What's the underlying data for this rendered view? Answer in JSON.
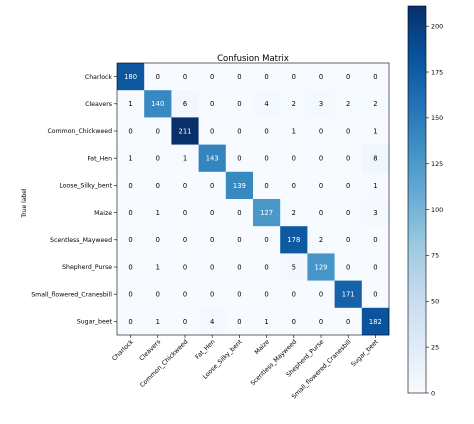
{
  "chart_data": {
    "type": "heatmap",
    "title": "Confusion Matrix",
    "ylabel": "True label",
    "xlabel": "",
    "labels": [
      "Charlock",
      "Cleavers",
      "Common_Chickweed",
      "Fat_Hen",
      "Loose_Silky_bent",
      "Maize",
      "Scentless_Mayweed",
      "Shepherd_Purse",
      "Small_flowered_Cranesbill",
      "Sugar_beet"
    ],
    "matrix": [
      [
        180,
        0,
        0,
        0,
        0,
        0,
        0,
        0,
        0,
        0
      ],
      [
        1,
        140,
        6,
        0,
        0,
        4,
        2,
        3,
        2,
        2
      ],
      [
        0,
        0,
        211,
        0,
        0,
        0,
        1,
        0,
        0,
        1
      ],
      [
        1,
        0,
        1,
        143,
        0,
        0,
        0,
        0,
        0,
        8
      ],
      [
        0,
        0,
        0,
        0,
        139,
        0,
        0,
        0,
        0,
        1
      ],
      [
        0,
        1,
        0,
        0,
        0,
        127,
        2,
        0,
        0,
        3
      ],
      [
        0,
        0,
        0,
        0,
        0,
        0,
        178,
        2,
        0,
        0
      ],
      [
        0,
        1,
        0,
        0,
        0,
        0,
        5,
        129,
        0,
        0
      ],
      [
        0,
        0,
        0,
        0,
        0,
        0,
        0,
        0,
        171,
        0
      ],
      [
        0,
        1,
        0,
        4,
        0,
        1,
        0,
        0,
        0,
        182
      ]
    ],
    "colorbar": {
      "ticks": [
        0,
        25,
        50,
        75,
        100,
        125,
        150,
        175,
        200
      ],
      "range": [
        0,
        211
      ],
      "colormap": "Blues"
    },
    "colors": {
      "low": "#f7fbff",
      "high": "#08306b",
      "text_light": "#ffffff",
      "text_dark": "#000000"
    }
  }
}
